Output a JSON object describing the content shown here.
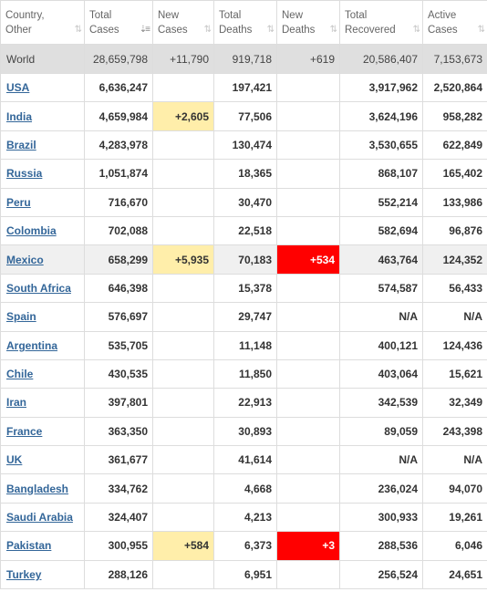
{
  "columns": [
    {
      "line1": "Country,",
      "line2": "Other",
      "sort_icon": "sort-both-icon"
    },
    {
      "line1": "Total",
      "line2": "Cases",
      "sort_icon": "sort-desc-active-icon"
    },
    {
      "line1": "New",
      "line2": "Cases",
      "sort_icon": "sort-both-icon"
    },
    {
      "line1": "Total",
      "line2": "Deaths",
      "sort_icon": "sort-both-icon"
    },
    {
      "line1": "New",
      "line2": "Deaths",
      "sort_icon": "sort-both-icon"
    },
    {
      "line1": "Total",
      "line2": "Recovered",
      "sort_icon": "sort-both-icon"
    },
    {
      "line1": "Active",
      "line2": "Cases",
      "sort_icon": "sort-both-icon"
    }
  ],
  "sort_glyphs": {
    "both": "⇅",
    "desc": "⇣≡"
  },
  "world": {
    "country": "World",
    "total_cases": "28,659,798",
    "new_cases": "+11,790",
    "total_deaths": "919,718",
    "new_deaths": "+619",
    "total_recovered": "20,586,407",
    "active_cases": "7,153,673"
  },
  "rows": [
    {
      "country": "USA",
      "total_cases": "6,636,247",
      "new_cases": "",
      "total_deaths": "197,421",
      "new_deaths": "",
      "total_recovered": "3,917,962",
      "active_cases": "2,520,864"
    },
    {
      "country": "India",
      "total_cases": "4,659,984",
      "new_cases": "+2,605",
      "total_deaths": "77,506",
      "new_deaths": "",
      "total_recovered": "3,624,196",
      "active_cases": "958,282"
    },
    {
      "country": "Brazil",
      "total_cases": "4,283,978",
      "new_cases": "",
      "total_deaths": "130,474",
      "new_deaths": "",
      "total_recovered": "3,530,655",
      "active_cases": "622,849"
    },
    {
      "country": "Russia",
      "total_cases": "1,051,874",
      "new_cases": "",
      "total_deaths": "18,365",
      "new_deaths": "",
      "total_recovered": "868,107",
      "active_cases": "165,402"
    },
    {
      "country": "Peru",
      "total_cases": "716,670",
      "new_cases": "",
      "total_deaths": "30,470",
      "new_deaths": "",
      "total_recovered": "552,214",
      "active_cases": "133,986"
    },
    {
      "country": "Colombia",
      "total_cases": "702,088",
      "new_cases": "",
      "total_deaths": "22,518",
      "new_deaths": "",
      "total_recovered": "582,694",
      "active_cases": "96,876"
    },
    {
      "country": "Mexico",
      "total_cases": "658,299",
      "new_cases": "+5,935",
      "total_deaths": "70,183",
      "new_deaths": "+534",
      "total_recovered": "463,764",
      "active_cases": "124,352"
    },
    {
      "country": "South Africa",
      "total_cases": "646,398",
      "new_cases": "",
      "total_deaths": "15,378",
      "new_deaths": "",
      "total_recovered": "574,587",
      "active_cases": "56,433"
    },
    {
      "country": "Spain",
      "total_cases": "576,697",
      "new_cases": "",
      "total_deaths": "29,747",
      "new_deaths": "",
      "total_recovered": "N/A",
      "active_cases": "N/A"
    },
    {
      "country": "Argentina",
      "total_cases": "535,705",
      "new_cases": "",
      "total_deaths": "11,148",
      "new_deaths": "",
      "total_recovered": "400,121",
      "active_cases": "124,436"
    },
    {
      "country": "Chile",
      "total_cases": "430,535",
      "new_cases": "",
      "total_deaths": "11,850",
      "new_deaths": "",
      "total_recovered": "403,064",
      "active_cases": "15,621"
    },
    {
      "country": "Iran",
      "total_cases": "397,801",
      "new_cases": "",
      "total_deaths": "22,913",
      "new_deaths": "",
      "total_recovered": "342,539",
      "active_cases": "32,349"
    },
    {
      "country": "France",
      "total_cases": "363,350",
      "new_cases": "",
      "total_deaths": "30,893",
      "new_deaths": "",
      "total_recovered": "89,059",
      "active_cases": "243,398"
    },
    {
      "country": "UK",
      "total_cases": "361,677",
      "new_cases": "",
      "total_deaths": "41,614",
      "new_deaths": "",
      "total_recovered": "N/A",
      "active_cases": "N/A"
    },
    {
      "country": "Bangladesh",
      "total_cases": "334,762",
      "new_cases": "",
      "total_deaths": "4,668",
      "new_deaths": "",
      "total_recovered": "236,024",
      "active_cases": "94,070"
    },
    {
      "country": "Saudi Arabia",
      "total_cases": "324,407",
      "new_cases": "",
      "total_deaths": "4,213",
      "new_deaths": "",
      "total_recovered": "300,933",
      "active_cases": "19,261"
    },
    {
      "country": "Pakistan",
      "total_cases": "300,955",
      "new_cases": "+584",
      "total_deaths": "6,373",
      "new_deaths": "+3",
      "total_recovered": "288,536",
      "active_cases": "6,046"
    },
    {
      "country": "Turkey",
      "total_cases": "288,126",
      "new_cases": "",
      "total_deaths": "6,951",
      "new_deaths": "",
      "total_recovered": "256,524",
      "active_cases": "24,651"
    }
  ],
  "highlighted_row_index": 6,
  "colors": {
    "new_cases_bg": "#ffeeaa",
    "new_deaths_bg": "#ff0000",
    "world_row_bg": "#dfdfdf",
    "link": "#336699"
  }
}
